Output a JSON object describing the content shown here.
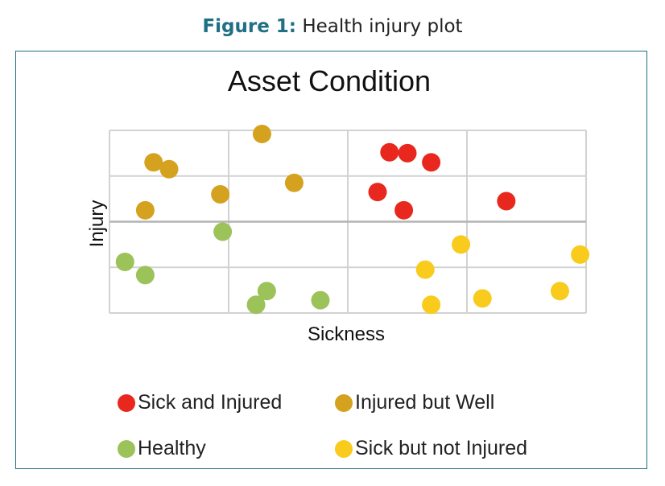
{
  "caption": {
    "figure_label": "Figure 1:",
    "text": "Health injury plot"
  },
  "chart_data": {
    "type": "scatter",
    "title": "Asset Condition",
    "xlabel": "Sickness",
    "ylabel": "Injury",
    "xlim": [
      0,
      4
    ],
    "ylim": [
      0,
      4
    ],
    "grid": true,
    "legend_position": "bottom",
    "series": [
      {
        "name": "Sick and Injured",
        "color": "#e8281e",
        "points": [
          [
            2.35,
            3.52
          ],
          [
            2.5,
            3.5
          ],
          [
            2.7,
            3.3
          ],
          [
            2.25,
            2.65
          ],
          [
            2.47,
            2.25
          ],
          [
            3.33,
            2.45
          ]
        ]
      },
      {
        "name": "Injured but Well",
        "color": "#d4a21e",
        "points": [
          [
            1.28,
            3.92
          ],
          [
            0.37,
            3.3
          ],
          [
            0.5,
            3.15
          ],
          [
            1.55,
            2.85
          ],
          [
            0.93,
            2.6
          ],
          [
            0.3,
            2.25
          ]
        ]
      },
      {
        "name": "Healthy",
        "color": "#9cc25a",
        "points": [
          [
            0.95,
            1.78
          ],
          [
            0.13,
            1.12
          ],
          [
            0.3,
            0.83
          ],
          [
            1.32,
            0.48
          ],
          [
            1.23,
            0.18
          ],
          [
            1.77,
            0.28
          ]
        ]
      },
      {
        "name": "Sick but not Injured",
        "color": "#f8cb1c",
        "points": [
          [
            2.95,
            1.5
          ],
          [
            3.95,
            1.28
          ],
          [
            2.65,
            0.95
          ],
          [
            3.78,
            0.48
          ],
          [
            3.13,
            0.32
          ],
          [
            2.7,
            0.18
          ]
        ]
      }
    ]
  }
}
